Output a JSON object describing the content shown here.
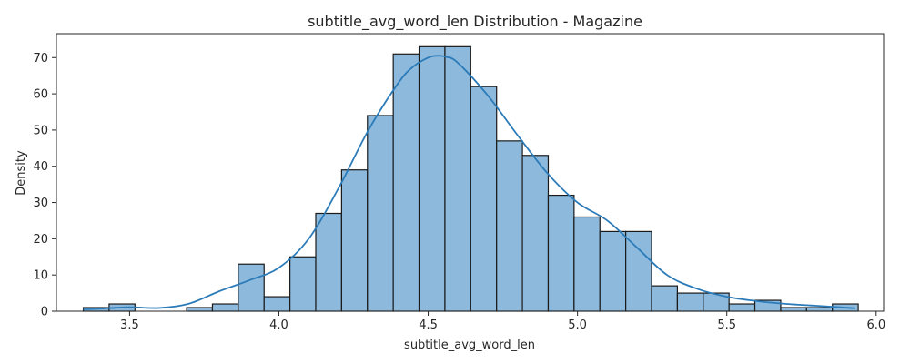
{
  "chart_data": {
    "type": "bar",
    "title": "subtitle_avg_word_len Distribution - Magazine",
    "xlabel": "subtitle_avg_word_len",
    "ylabel": "Density",
    "xlim": [
      3.255,
      6.025
    ],
    "ylim": [
      0,
      76.6
    ],
    "xticks": [
      3.5,
      4.0,
      4.5,
      5.0,
      5.5,
      6.0
    ],
    "xtick_labels": [
      "3.5",
      "4.0",
      "4.5",
      "5.0",
      "5.5",
      "6.0"
    ],
    "yticks": [
      0,
      10,
      20,
      30,
      40,
      50,
      60,
      70
    ],
    "ytick_labels": [
      "0",
      "10",
      "20",
      "30",
      "40",
      "50",
      "60",
      "70"
    ],
    "grid": false,
    "bar_color": "#8cb9dc",
    "bar_edge_color": "#1a1a1a",
    "kde_color": "#2b7bb9",
    "bins": {
      "start": 3.345,
      "width": 0.0865,
      "values": [
        1,
        2,
        0,
        0,
        1,
        2,
        13,
        4,
        15,
        27,
        39,
        54,
        71,
        73,
        73,
        62,
        47,
        43,
        32,
        26,
        22,
        22,
        7,
        5,
        5,
        2,
        3,
        1,
        1,
        2
      ]
    },
    "kde": {
      "x": [
        3.345,
        3.4,
        3.5,
        3.6,
        3.7,
        3.8,
        3.9,
        4.0,
        4.1,
        4.2,
        4.3,
        4.4,
        4.45,
        4.5,
        4.53,
        4.56,
        4.6,
        4.7,
        4.8,
        4.9,
        5.0,
        5.1,
        5.2,
        5.3,
        5.4,
        5.5,
        5.6,
        5.7,
        5.8,
        5.93
      ],
      "y": [
        0.5,
        0.7,
        1.1,
        0.9,
        2.1,
        5.5,
        8.5,
        12.0,
        20.0,
        34.0,
        50.0,
        63.0,
        67.5,
        70.0,
        70.5,
        70.2,
        68.5,
        59.5,
        48.5,
        38.0,
        30.0,
        25.0,
        17.5,
        10.0,
        6.2,
        4.0,
        2.8,
        2.0,
        1.5,
        0.8
      ]
    }
  }
}
